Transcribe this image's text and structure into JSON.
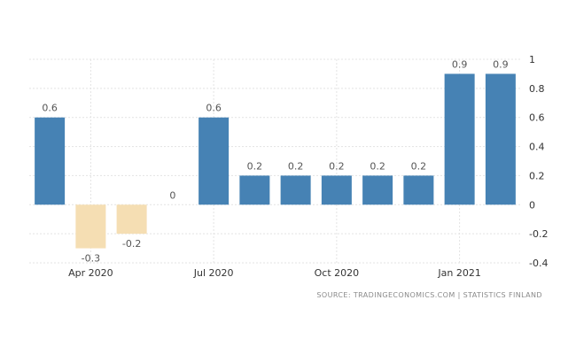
{
  "chart_data": {
    "type": "bar",
    "categories": [
      "Mar 2020",
      "Apr 2020",
      "May 2020",
      "Jun 2020",
      "Jul 2020",
      "Aug 2020",
      "Sep 2020",
      "Oct 2020",
      "Nov 2020",
      "Dec 2020",
      "Jan 2021",
      "Feb 2021"
    ],
    "values": [
      0.6,
      -0.3,
      -0.2,
      0,
      0.6,
      0.2,
      0.2,
      0.2,
      0.2,
      0.2,
      0.9,
      0.9
    ],
    "data_labels": [
      "0.6",
      "-0.3",
      "-0.2",
      "0",
      "0.6",
      "0.2",
      "0.2",
      "0.2",
      "0.2",
      "0.2",
      "0.9",
      "0.9"
    ],
    "x_tick_labels": [
      {
        "index": 1,
        "label": "Apr 2020"
      },
      {
        "index": 4,
        "label": "Jul 2020"
      },
      {
        "index": 7,
        "label": "Oct 2020"
      },
      {
        "index": 10,
        "label": "Jan 2021"
      }
    ],
    "y_ticks": [
      1,
      0.8,
      0.6,
      0.4,
      0.2,
      0,
      -0.2,
      -0.4
    ],
    "y_tick_labels": [
      "1",
      "0.8",
      "0.6",
      "0.4",
      "0.2",
      "0",
      "-0.2",
      "-0.4"
    ],
    "ylim": [
      -0.4,
      1
    ],
    "y_axis_side": "right",
    "grid": true,
    "title": "",
    "xlabel": "",
    "ylabel": "",
    "colors": {
      "positive": "#4682b4",
      "negative": "#f5deb3"
    },
    "source": "SOURCE: TRADINGECONOMICS.COM | STATISTICS FINLAND"
  }
}
